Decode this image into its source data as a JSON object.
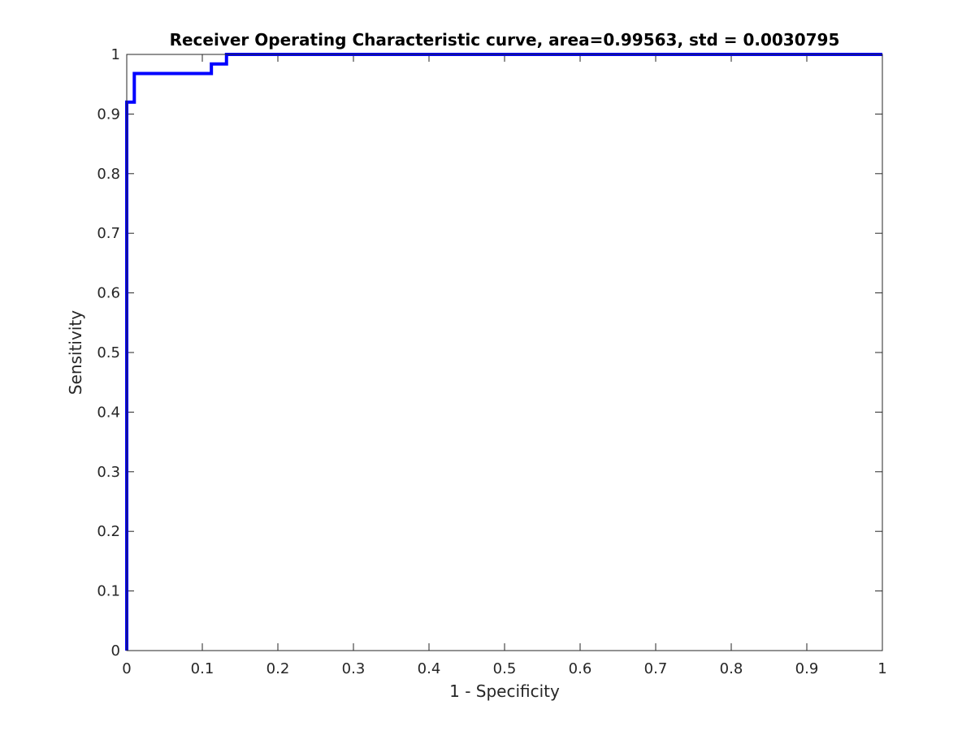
{
  "chart_data": {
    "type": "line",
    "title": "Receiver Operating Characteristic curve, area=0.99563, std = 0.0030795",
    "xlabel": "1 - Specificity",
    "ylabel": "Sensitivity",
    "xlim": [
      0,
      1
    ],
    "ylim": [
      0,
      1
    ],
    "xticks": [
      0,
      0.1,
      0.2,
      0.3,
      0.4,
      0.5,
      0.6,
      0.7,
      0.8,
      0.9,
      1
    ],
    "yticks": [
      0,
      0.1,
      0.2,
      0.3,
      0.4,
      0.5,
      0.6,
      0.7,
      0.8,
      0.9,
      1
    ],
    "xtick_labels": [
      "0",
      "0.1",
      "0.2",
      "0.3",
      "0.4",
      "0.5",
      "0.6",
      "0.7",
      "0.8",
      "0.9",
      "1"
    ],
    "ytick_labels": [
      "0",
      "0.1",
      "0.2",
      "0.3",
      "0.4",
      "0.5",
      "0.6",
      "0.7",
      "0.8",
      "0.9",
      "1"
    ],
    "grid": false,
    "series": [
      {
        "color": "#0000ff",
        "x": [
          0,
          0,
          0.01,
          0.01,
          0.112,
          0.112,
          0.132,
          0.132,
          1
        ],
        "y": [
          0,
          0.92,
          0.92,
          0.968,
          0.968,
          0.984,
          0.984,
          1,
          1
        ]
      }
    ]
  }
}
